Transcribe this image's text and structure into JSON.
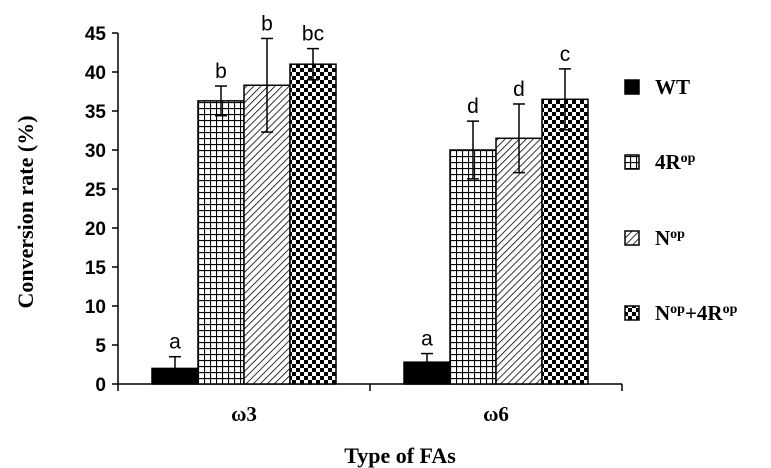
{
  "chart_data": {
    "type": "bar",
    "xlabel": "Type of FAs",
    "ylabel": "Conversion rate (%)",
    "ylim": [
      0,
      45
    ],
    "yticks": [
      0,
      5,
      10,
      15,
      20,
      25,
      30,
      35,
      40,
      45
    ],
    "categories": [
      "ω3",
      "ω6"
    ],
    "series": [
      {
        "name": "WT",
        "sup": "",
        "suffix": "",
        "sup2": "",
        "pattern": "solid",
        "values": [
          2.0,
          2.8
        ],
        "errors": [
          1.5,
          1.1
        ],
        "labels": [
          "a",
          "a"
        ]
      },
      {
        "name": "4R",
        "sup": "op",
        "suffix": "",
        "sup2": "",
        "pattern": "grid",
        "values": [
          36.3,
          30.0
        ],
        "errors": [
          1.9,
          3.7
        ],
        "labels": [
          "b",
          "d"
        ]
      },
      {
        "name": "N",
        "sup": "op",
        "suffix": "",
        "sup2": "",
        "pattern": "diagonal",
        "values": [
          38.3,
          31.5
        ],
        "errors": [
          6.0,
          4.4
        ],
        "labels": [
          "b",
          "d"
        ]
      },
      {
        "name": "N",
        "sup": "op",
        "suffix": "+4R",
        "sup2": "op",
        "pattern": "checkerboard",
        "values": [
          41.0,
          36.5
        ],
        "errors": [
          2.0,
          3.9
        ],
        "labels": [
          "bc",
          "c"
        ]
      }
    ],
    "legend_position": "right",
    "grid": false,
    "colors": {
      "bar_fill": "#000000",
      "background": "#ffffff"
    }
  }
}
